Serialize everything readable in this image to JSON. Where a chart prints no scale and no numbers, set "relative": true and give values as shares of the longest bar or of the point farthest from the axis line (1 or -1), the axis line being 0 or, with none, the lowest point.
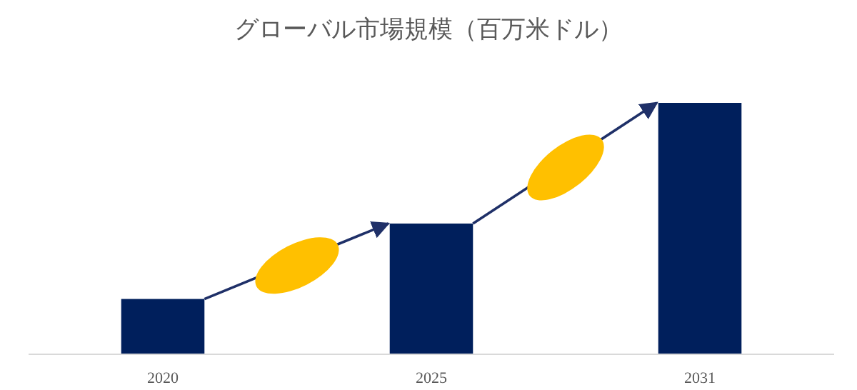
{
  "chart_data": {
    "type": "bar",
    "title": "グローバル市場規模（百万米ドル）",
    "categories": [
      "2020",
      "2025",
      "2031"
    ],
    "values": [
      0.22,
      0.52,
      1
    ],
    "color": "#001f5c",
    "relative": true
  }
}
